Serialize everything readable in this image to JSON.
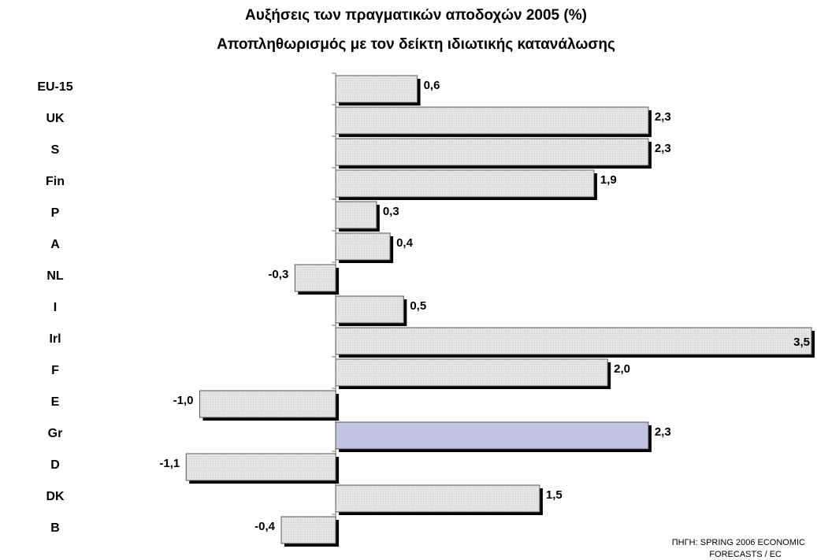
{
  "chart_data": {
    "type": "bar",
    "orientation": "horizontal",
    "title": "Αυξήσεις των πραγματικών αποδοχών 2005 (%)",
    "subtitle": "Αποπληθωρισμός με τον δείκτη ιδιωτικής κατανάλωσης",
    "categories": [
      "EU-15",
      "UK",
      "S",
      "Fin",
      "P",
      "A",
      "NL",
      "I",
      "Irl",
      "F",
      "E",
      "Gr",
      "D",
      "DK",
      "B"
    ],
    "values": [
      0.6,
      2.3,
      2.3,
      1.9,
      0.3,
      0.4,
      -0.3,
      0.5,
      3.5,
      2.0,
      -1.0,
      2.3,
      -1.1,
      1.5,
      -0.4
    ],
    "value_labels": [
      "0,6",
      "2,3",
      "2,3",
      "1,9",
      "0,3",
      "0,4",
      "-0,3",
      "0,5",
      "3,5",
      "2,0",
      "-1,0",
      "2,3",
      "-1,1",
      "1,5",
      "-0,4"
    ],
    "colors": [
      "#e4e4e4",
      "#e4e4e4",
      "#e4e4e4",
      "#e4e4e4",
      "#e4e4e4",
      "#e4e4e4",
      "#e4e4e4",
      "#e4e4e4",
      "#e4e4e4",
      "#e4e4e4",
      "#e4e4e4",
      "#c4c4e2",
      "#e4e4e4",
      "#e4e4e4",
      "#e4e4e4"
    ],
    "xlim": [
      -1.2,
      3.5
    ],
    "source": [
      "ΠΗΓΗ: SPRING 2006 ECONOMIC",
      "FORECASTS / EC"
    ]
  }
}
